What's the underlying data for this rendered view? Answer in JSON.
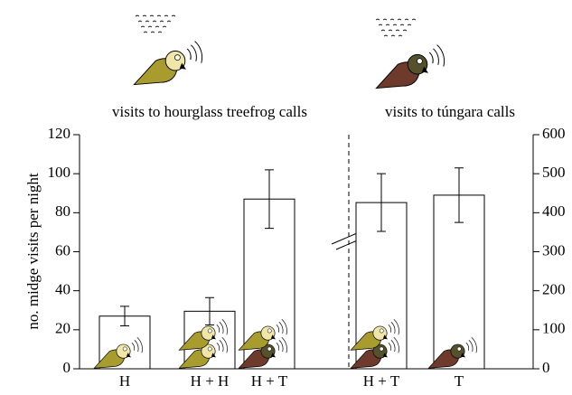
{
  "chart_data": {
    "type": "bar",
    "annotations": [
      "visits to hourglass treefrog calls",
      "visits to túngara calls"
    ],
    "ylabel": "no. midge visits per night",
    "categories": [
      "H",
      "H + H",
      "H + T",
      "H + T",
      "T"
    ],
    "series": [
      {
        "color": "#ffffff",
        "values": [
          27,
          29.5,
          87,
          null,
          null
        ],
        "errors": [
          5,
          7,
          15,
          null,
          null
        ]
      },
      {
        "color": "#ffffff",
        "axis": "y2",
        "values": [
          null,
          null,
          null,
          426,
          445
        ],
        "errors": [
          null,
          null,
          null,
          74,
          70
        ]
      }
    ],
    "ylim": [
      0,
      120
    ],
    "yticks": [
      0,
      20,
      40,
      60,
      80,
      100,
      120
    ],
    "y2lim": [
      0,
      600
    ],
    "y2ticks": [
      0,
      100,
      200,
      300,
      400,
      500,
      600
    ]
  }
}
